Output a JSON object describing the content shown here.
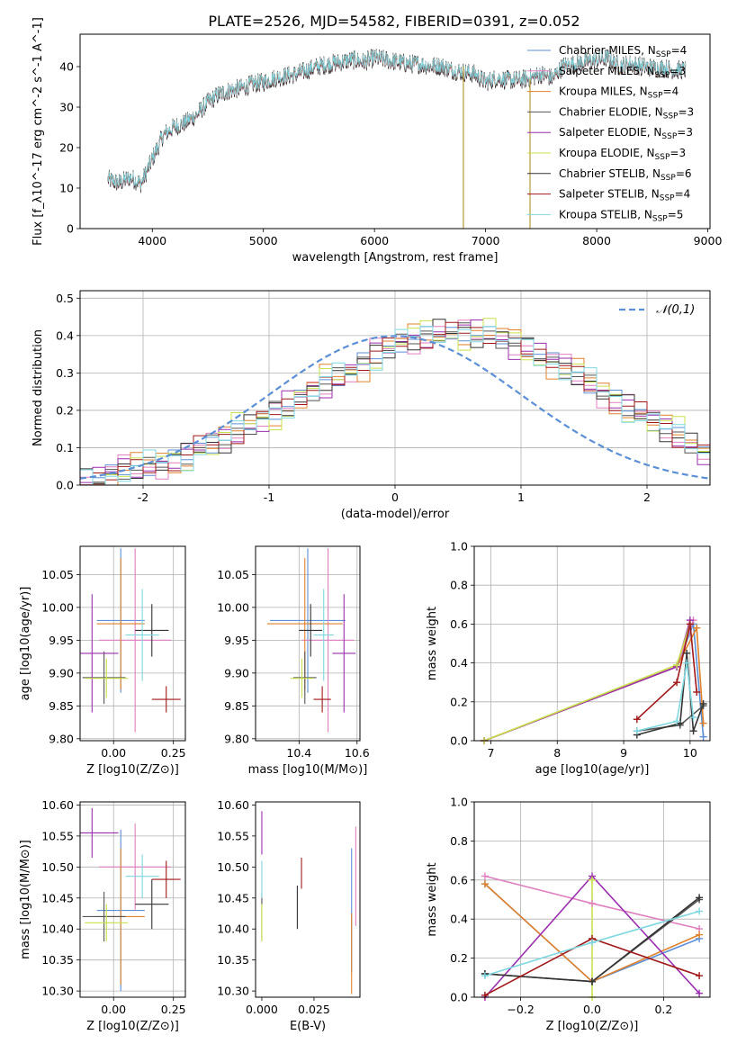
{
  "figure_title": "PLATE=2526, MJD=54582, FIBERID=0391, z=0.052",
  "colors": {
    "Chabrier MILES": "#5b8fd6",
    "Salpeter MILES": "#e07fbf",
    "Kroupa MILES": "#e0812b",
    "Chabrier ELODIE": "#555555",
    "Salpeter ELODIE": "#9b2fae",
    "Kroupa ELODIE": "#c8e04a",
    "Chabrier STELIB": "#333333",
    "Salpeter STELIB": "#a01818",
    "Kroupa STELIB": "#7fd7e0"
  },
  "chart_data": [
    {
      "id": "spectrum",
      "type": "line",
      "xlabel": "wavelength [Angstrom, rest frame]",
      "ylabel": "Flux [f_λ10^-17 erg cm^-2 s^-1 A^-1]",
      "xlim": [
        3350,
        9020
      ],
      "ylim": [
        0,
        48
      ],
      "xticks": [
        4000,
        5000,
        6000,
        7000,
        8000,
        9000
      ],
      "yticks": [
        0,
        10,
        20,
        30,
        40
      ],
      "legend_position": "right",
      "series_names": [
        "Chabrier MILES, N_SSP=4",
        "Salpeter MILES, N_SSP=3",
        "Kroupa MILES, N_SSP=4",
        "Chabrier ELODIE, N_SSP=3",
        "Salpeter ELODIE, N_SSP=3",
        "Kroupa ELODIE, N_SSP=3",
        "Chabrier STELIB, N_SSP=6",
        "Salpeter STELIB, N_SSP=4",
        "Kroupa STELIB, N_SSP=5"
      ],
      "continuum": {
        "x": [
          3600,
          3700,
          3800,
          3900,
          4000,
          4100,
          4200,
          4300,
          4400,
          4500,
          4600,
          4700,
          4800,
          4900,
          5000,
          5100,
          5200,
          5300,
          5400,
          5500,
          5600,
          5700,
          5800,
          5900,
          6000,
          6100,
          6200,
          6300,
          6400,
          6500,
          6600,
          6700,
          6800,
          6900,
          7000,
          7100,
          7200,
          7300,
          7400,
          7500,
          7600,
          7700,
          7800,
          7900,
          8000,
          8100,
          8200,
          8300,
          8400,
          8500,
          8600,
          8700,
          8800
        ],
        "y": [
          12,
          11,
          12.5,
          11,
          17,
          23,
          25,
          26,
          28,
          31,
          33,
          34,
          34.5,
          35.5,
          36,
          37,
          37.5,
          38,
          39,
          40,
          40.5,
          41,
          41.5,
          41,
          42,
          41.5,
          41,
          40.5,
          40.5,
          40,
          40,
          39,
          38.5,
          38,
          36,
          37,
          36.5,
          36.5,
          37,
          38,
          37,
          40,
          40.5,
          41,
          41.5,
          42,
          40,
          40.5,
          40,
          39.5,
          39.5,
          39,
          39
        ]
      },
      "spikes": [
        {
          "x": 3900,
          "ymax": 0
        },
        {
          "x": 6800,
          "ymax": 40
        },
        {
          "x": 7400,
          "ymax": 37
        }
      ]
    },
    {
      "id": "residual-histogram",
      "type": "histogram",
      "xlabel": "(data-model)/error",
      "ylabel": "Normed distribution",
      "xlim": [
        -2.5,
        2.5
      ],
      "ylim": [
        0,
        0.52
      ],
      "xticks": [
        -2,
        -1,
        0,
        1,
        2
      ],
      "yticks": [
        0.0,
        0.1,
        0.2,
        0.3,
        0.4,
        0.5
      ],
      "grid": true,
      "legend_entry": "N(0,1)",
      "reference_curve": "normal(0,1) pdf",
      "bin_width": 0.1,
      "bin_start": -2.5,
      "template": [
        0.02,
        0.02,
        0.03,
        0.04,
        0.04,
        0.05,
        0.06,
        0.07,
        0.08,
        0.1,
        0.11,
        0.12,
        0.14,
        0.16,
        0.18,
        0.2,
        0.21,
        0.23,
        0.25,
        0.27,
        0.29,
        0.31,
        0.33,
        0.35,
        0.36,
        0.38,
        0.39,
        0.4,
        0.41,
        0.41,
        0.41,
        0.4,
        0.4,
        0.39,
        0.38,
        0.37,
        0.35,
        0.33,
        0.31,
        0.29,
        0.27,
        0.25,
        0.23,
        0.21,
        0.19,
        0.17,
        0.15,
        0.13,
        0.11,
        0.09,
        0.08,
        0.07,
        0.06,
        0.05,
        0.04,
        0.04,
        0.03,
        0.03,
        0.02,
        0.02,
        0.02,
        0.02,
        0.02,
        0.02,
        0.02,
        0.02,
        0.02,
        0.02,
        0.02,
        0.02
      ],
      "series_offsets": [
        0.0,
        -0.02,
        0.03,
        0.0,
        0.02,
        -0.03,
        0.01,
        -0.01,
        0.02
      ]
    },
    {
      "id": "age-vs-Z",
      "type": "errorbar",
      "xlabel": "Z [log10(Z/Z⊙)]",
      "ylabel": "age [log10(age/yr)]",
      "xlim": [
        -0.14,
        0.3
      ],
      "ylim": [
        9.797,
        10.093
      ],
      "xticks": [
        0.0,
        0.25
      ],
      "xticklabels": [
        "0.00",
        "0.25"
      ],
      "yticks": [
        9.8,
        9.85,
        9.9,
        9.95,
        10.0,
        10.05
      ],
      "grid": true,
      "points": [
        {
          "series": "Chabrier MILES",
          "x": 0.03,
          "xerr": 0.1,
          "y": 9.98,
          "yerr": 0.11
        },
        {
          "series": "Salpeter MILES",
          "x": 0.09,
          "xerr": 0.15,
          "y": 9.95,
          "yerr": 0.14
        },
        {
          "series": "Kroupa MILES",
          "x": 0.03,
          "xerr": 0.1,
          "y": 9.975,
          "yerr": 0.1
        },
        {
          "series": "Chabrier ELODIE",
          "x": -0.04,
          "xerr": 0.09,
          "y": 9.893,
          "yerr": 0.04
        },
        {
          "series": "Salpeter ELODIE",
          "x": -0.09,
          "xerr": 0.11,
          "y": 9.93,
          "yerr": 0.09
        },
        {
          "series": "Kroupa ELODIE",
          "x": -0.03,
          "xerr": 0.09,
          "y": 9.892,
          "yerr": 0.03
        },
        {
          "series": "Chabrier STELIB",
          "x": 0.16,
          "xerr": 0.07,
          "y": 9.965,
          "yerr": 0.04
        },
        {
          "series": "Salpeter STELIB",
          "x": 0.22,
          "xerr": 0.06,
          "y": 9.86,
          "yerr": 0.02
        },
        {
          "series": "Kroupa STELIB",
          "x": 0.12,
          "xerr": 0.07,
          "y": 9.958,
          "yerr": 0.07
        }
      ]
    },
    {
      "id": "age-vs-mass",
      "type": "errorbar",
      "xlabel": "mass [log10(M/M⊙)]",
      "ylabel": "",
      "xlim": [
        10.25,
        10.61
      ],
      "ylim": [
        9.797,
        10.093
      ],
      "xticks": [
        10.4,
        10.6
      ],
      "yticks": [
        9.8,
        9.85,
        9.9,
        9.95,
        10.0,
        10.05
      ],
      "grid": true,
      "points": [
        {
          "series": "Chabrier MILES",
          "x": 10.43,
          "xerr": 0.13,
          "y": 9.98,
          "yerr": 0.11
        },
        {
          "series": "Salpeter MILES",
          "x": 10.5,
          "xerr": 0.09,
          "y": 9.95,
          "yerr": 0.14
        },
        {
          "series": "Kroupa MILES",
          "x": 10.42,
          "xerr": 0.13,
          "y": 9.975,
          "yerr": 0.1
        },
        {
          "series": "Chabrier ELODIE",
          "x": 10.42,
          "xerr": 0.04,
          "y": 9.893,
          "yerr": 0.04
        },
        {
          "series": "Salpeter ELODIE",
          "x": 10.555,
          "xerr": 0.04,
          "y": 9.93,
          "yerr": 0.09
        },
        {
          "series": "Kroupa ELODIE",
          "x": 10.41,
          "xerr": 0.04,
          "y": 9.892,
          "yerr": 0.03
        },
        {
          "series": "Chabrier STELIB",
          "x": 10.44,
          "xerr": 0.04,
          "y": 9.965,
          "yerr": 0.04
        },
        {
          "series": "Salpeter STELIB",
          "x": 10.48,
          "xerr": 0.03,
          "y": 9.86,
          "yerr": 0.02
        },
        {
          "series": "Kroupa STELIB",
          "x": 10.485,
          "xerr": 0.035,
          "y": 9.958,
          "yerr": 0.07
        }
      ]
    },
    {
      "id": "mass-weight-vs-age",
      "type": "line",
      "xlabel": "age [log10(age/yr)]",
      "ylabel": "mass weight",
      "xlim": [
        6.75,
        10.3
      ],
      "ylim": [
        0,
        1.0
      ],
      "xticks": [
        7,
        8,
        9,
        10
      ],
      "yticks": [
        0.0,
        0.2,
        0.4,
        0.6,
        0.8,
        1.0
      ],
      "grid": true,
      "series": [
        {
          "name": "Chabrier MILES",
          "x": [
            6.9,
            9.8,
            10.05,
            10.2
          ],
          "y": [
            0.0,
            0.38,
            0.6,
            0.02
          ]
        },
        {
          "name": "Salpeter MILES",
          "x": [
            6.9,
            9.8,
            10.05
          ],
          "y": [
            0.0,
            0.38,
            0.62
          ]
        },
        {
          "name": "Kroupa MILES",
          "x": [
            6.9,
            9.8,
            10.1,
            10.2
          ],
          "y": [
            0.0,
            0.38,
            0.58,
            0.09
          ]
        },
        {
          "name": "Chabrier ELODIE",
          "x": [
            9.2,
            9.85,
            10.2
          ],
          "y": [
            0.05,
            0.08,
            0.18
          ]
        },
        {
          "name": "Salpeter ELODIE",
          "x": [
            6.9,
            9.8,
            10.0
          ],
          "y": [
            0.0,
            0.38,
            0.62
          ]
        },
        {
          "name": "Kroupa ELODIE",
          "x": [
            6.9,
            9.8,
            10.0
          ],
          "y": [
            0.0,
            0.39,
            0.6
          ]
        },
        {
          "name": "Chabrier STELIB",
          "x": [
            9.2,
            9.85,
            9.95,
            10.05,
            10.2
          ],
          "y": [
            0.03,
            0.09,
            0.45,
            0.05,
            0.19
          ]
        },
        {
          "name": "Salpeter STELIB",
          "x": [
            9.2,
            9.8,
            10.0,
            10.1
          ],
          "y": [
            0.11,
            0.3,
            0.6,
            0.25
          ]
        },
        {
          "name": "Kroupa STELIB",
          "x": [
            9.2,
            9.8,
            9.95,
            10.05
          ],
          "y": [
            0.05,
            0.1,
            0.4,
            0.12
          ]
        }
      ]
    },
    {
      "id": "mass-vs-Z",
      "type": "errorbar",
      "xlabel": "Z [log10(Z/Z⊙)]",
      "ylabel": "mass [log10(M/M⊙)]",
      "xlim": [
        -0.14,
        0.3
      ],
      "ylim": [
        10.29,
        10.605
      ],
      "xticks": [
        0.0,
        0.25
      ],
      "xticklabels": [
        "0.00",
        "0.25"
      ],
      "yticks": [
        10.3,
        10.35,
        10.4,
        10.45,
        10.5,
        10.55,
        10.6
      ],
      "grid": true,
      "points": [
        {
          "series": "Chabrier MILES",
          "x": 0.03,
          "xerr": 0.1,
          "y": 10.43,
          "yerr": 0.13
        },
        {
          "series": "Salpeter MILES",
          "x": 0.09,
          "xerr": 0.15,
          "y": 10.5,
          "yerr": 0.07
        },
        {
          "series": "Kroupa MILES",
          "x": 0.03,
          "xerr": 0.1,
          "y": 10.42,
          "yerr": 0.11
        },
        {
          "series": "Chabrier ELODIE",
          "x": -0.04,
          "xerr": 0.09,
          "y": 10.42,
          "yerr": 0.04
        },
        {
          "series": "Salpeter ELODIE",
          "x": -0.09,
          "xerr": 0.11,
          "y": 10.555,
          "yerr": 0.04
        },
        {
          "series": "Kroupa ELODIE",
          "x": -0.03,
          "xerr": 0.09,
          "y": 10.41,
          "yerr": 0.03
        },
        {
          "series": "Chabrier STELIB",
          "x": 0.16,
          "xerr": 0.07,
          "y": 10.44,
          "yerr": 0.04
        },
        {
          "series": "Salpeter STELIB",
          "x": 0.22,
          "xerr": 0.06,
          "y": 10.48,
          "yerr": 0.03
        },
        {
          "series": "Kroupa STELIB",
          "x": 0.12,
          "xerr": 0.07,
          "y": 10.485,
          "yerr": 0.035
        }
      ]
    },
    {
      "id": "mass-vs-ebv",
      "type": "errorbar",
      "xlabel": "E(B-V)",
      "ylabel": "",
      "xlim": [
        -0.003,
        0.047
      ],
      "ylim": [
        10.29,
        10.605
      ],
      "xticks": [
        0.0,
        0.025
      ],
      "xticklabels": [
        "0.000",
        "0.025"
      ],
      "yticks": [
        10.3,
        10.35,
        10.4,
        10.45,
        10.5,
        10.55,
        10.6
      ],
      "grid": false,
      "points": [
        {
          "series": "Chabrier MILES",
          "x": 0.043,
          "y": 10.43,
          "yerr": 0.1
        },
        {
          "series": "Salpeter MILES",
          "x": 0.045,
          "y": 10.485,
          "yerr": 0.08
        },
        {
          "series": "Kroupa MILES",
          "x": 0.043,
          "y": 10.36,
          "yerr": 0.065
        },
        {
          "series": "Chabrier ELODIE",
          "x": 0.0,
          "y": 10.42,
          "yerr": 0.04
        },
        {
          "series": "Salpeter ELODIE",
          "x": 0.0,
          "y": 10.555,
          "yerr": 0.035
        },
        {
          "series": "Kroupa ELODIE",
          "x": 0.0,
          "y": 10.41,
          "yerr": 0.03
        },
        {
          "series": "Chabrier STELIB",
          "x": 0.017,
          "y": 10.435,
          "yerr": 0.035
        },
        {
          "series": "Salpeter STELIB",
          "x": 0.019,
          "y": 10.49,
          "yerr": 0.025
        },
        {
          "series": "Kroupa STELIB",
          "x": 0.0,
          "y": 10.48,
          "yerr": 0.03
        }
      ]
    },
    {
      "id": "mass-weight-vs-Z",
      "type": "line",
      "xlabel": "Z [log10(Z/Z⊙)]",
      "ylabel": "mass weight",
      "xlim": [
        -0.33,
        0.33
      ],
      "ylim": [
        0,
        1.0
      ],
      "xticks": [
        -0.2,
        0.0,
        0.2
      ],
      "xticklabels": [
        "−0.2",
        "0.0",
        "0.2"
      ],
      "yticks": [
        0.0,
        0.2,
        0.4,
        0.6,
        0.8,
        1.0
      ],
      "grid": true,
      "series": [
        {
          "name": "Chabrier MILES",
          "x": [
            -0.3,
            0.0,
            0.3
          ],
          "y": [
            0.58,
            0.08,
            0.3
          ]
        },
        {
          "name": "Salpeter MILES",
          "x": [
            -0.3,
            0.0,
            0.3
          ],
          "y": [
            0.62,
            0.48,
            0.35
          ]
        },
        {
          "name": "Kroupa MILES",
          "x": [
            -0.3,
            0.0,
            0.3
          ],
          "y": [
            0.58,
            0.08,
            0.32
          ]
        },
        {
          "name": "Chabrier ELODIE",
          "x": [
            -0.3,
            0.0,
            0.3
          ],
          "y": [
            0.12,
            0.08,
            0.5
          ]
        },
        {
          "name": "Salpeter ELODIE",
          "x": [
            -0.3,
            0.0,
            0.3
          ],
          "y": [
            0.0,
            0.62,
            0.02
          ]
        },
        {
          "name": "Kroupa ELODIE",
          "x": [
            0.0,
            0.0
          ],
          "y": [
            0.0,
            0.6
          ]
        },
        {
          "name": "Chabrier STELIB",
          "x": [
            -0.3,
            0.0,
            0.3
          ],
          "y": [
            0.12,
            0.08,
            0.51
          ]
        },
        {
          "name": "Salpeter STELIB",
          "x": [
            -0.3,
            0.0,
            0.3
          ],
          "y": [
            0.01,
            0.3,
            0.11
          ]
        },
        {
          "name": "Kroupa STELIB",
          "x": [
            -0.3,
            0.0,
            0.3
          ],
          "y": [
            0.11,
            0.28,
            0.44
          ]
        }
      ]
    }
  ]
}
